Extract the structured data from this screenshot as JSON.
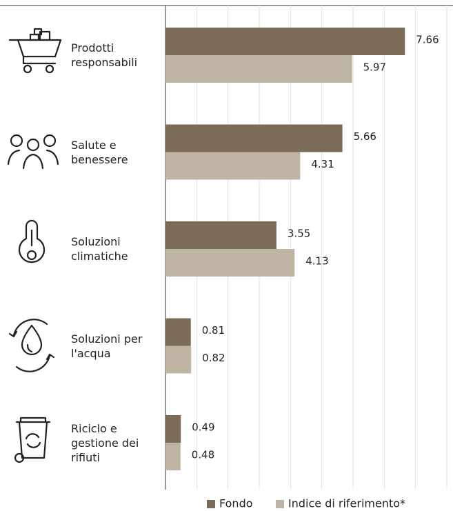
{
  "chart_data": {
    "type": "barh",
    "categories": [
      "Prodotti responsabili",
      "Salute e benessere",
      "Soluzioni climatiche",
      "Soluzioni per l'acqua",
      "Riciclo e gestione dei rifiuti"
    ],
    "series": [
      {
        "name": "Fondo",
        "color": "#7b6b59",
        "values": [
          7.66,
          5.66,
          3.55,
          0.81,
          0.49
        ]
      },
      {
        "name": "Indice di riferimento*",
        "color": "#bdb4a4",
        "values": [
          5.97,
          4.31,
          4.13,
          0.82,
          0.48
        ]
      }
    ],
    "xlim": [
      0,
      9
    ],
    "xticks": [
      0,
      1,
      2,
      3,
      4,
      5,
      6,
      7,
      8,
      9
    ],
    "grid": true,
    "legend": "bottom"
  }
}
